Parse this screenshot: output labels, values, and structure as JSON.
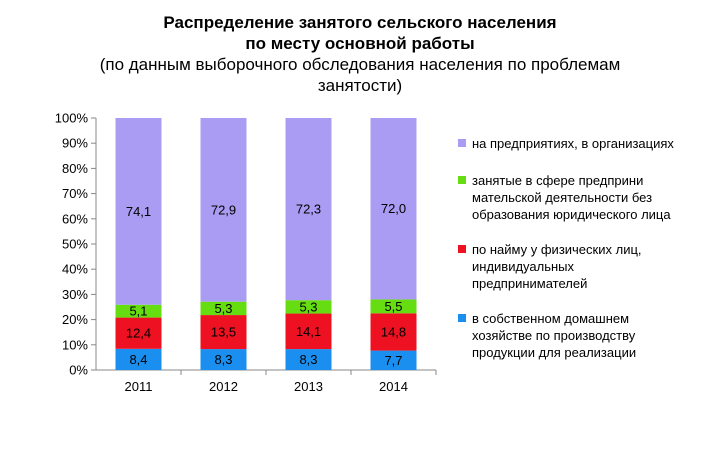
{
  "chart_data": {
    "type": "bar",
    "stacked": true,
    "percent": true,
    "title": "Распределение занятого сельского населения по месту основной работы",
    "title_lines": [
      "Распределение занятого сельского населения",
      "по месту основной работы"
    ],
    "subtitle_lines": [
      "(по данным выборочного обследования населения по проблемам",
      "занятости)"
    ],
    "categories": [
      "2011",
      "2012",
      "2013",
      "2014"
    ],
    "yticks": [
      "0%",
      "10%",
      "20%",
      "30%",
      "40%",
      "50%",
      "60%",
      "70%",
      "80%",
      "90%",
      "100%"
    ],
    "ylim": [
      0,
      100
    ],
    "grid": false,
    "legend_position": "right",
    "series": [
      {
        "name": "в собственном домашнем хозяйстве по производству продукции для реализации",
        "name_lines": [
          "в собственном домашнем",
          "хозяйстве по производству",
          "продукции для реализации"
        ],
        "color": "#1a8ff0",
        "values": [
          8.4,
          8.3,
          8.3,
          7.7
        ],
        "labels": [
          "8,4",
          "8,3",
          "8,3",
          "7,7"
        ]
      },
      {
        "name": "по найму у физических лиц, индивидуальных предпринимателей",
        "name_lines": [
          "по найму у физических лиц,",
          "индивидуальных",
          "предпринимателей"
        ],
        "color": "#ee1122",
        "values": [
          12.4,
          13.5,
          14.1,
          14.8
        ],
        "labels": [
          "12,4",
          "13,5",
          "14,1",
          "14,8"
        ]
      },
      {
        "name": "занятые в сфере предпринимательской деятельности без образования юридического лица",
        "name_lines": [
          "занятые в сфере предприни",
          "мательской деятельности без",
          "образования юридического лица"
        ],
        "color": "#66dd11",
        "values": [
          5.1,
          5.3,
          5.3,
          5.5
        ],
        "labels": [
          "5,1",
          "5,3",
          "5,3",
          "5,5"
        ]
      },
      {
        "name": "на предприятиях, в организациях",
        "name_lines": [
          "на предприятиях, в организациях"
        ],
        "color": "#a99cf2",
        "values": [
          74.1,
          72.9,
          72.3,
          72.0
        ],
        "labels": [
          "74,1",
          "72,9",
          "72,3",
          "72,0"
        ]
      }
    ]
  }
}
